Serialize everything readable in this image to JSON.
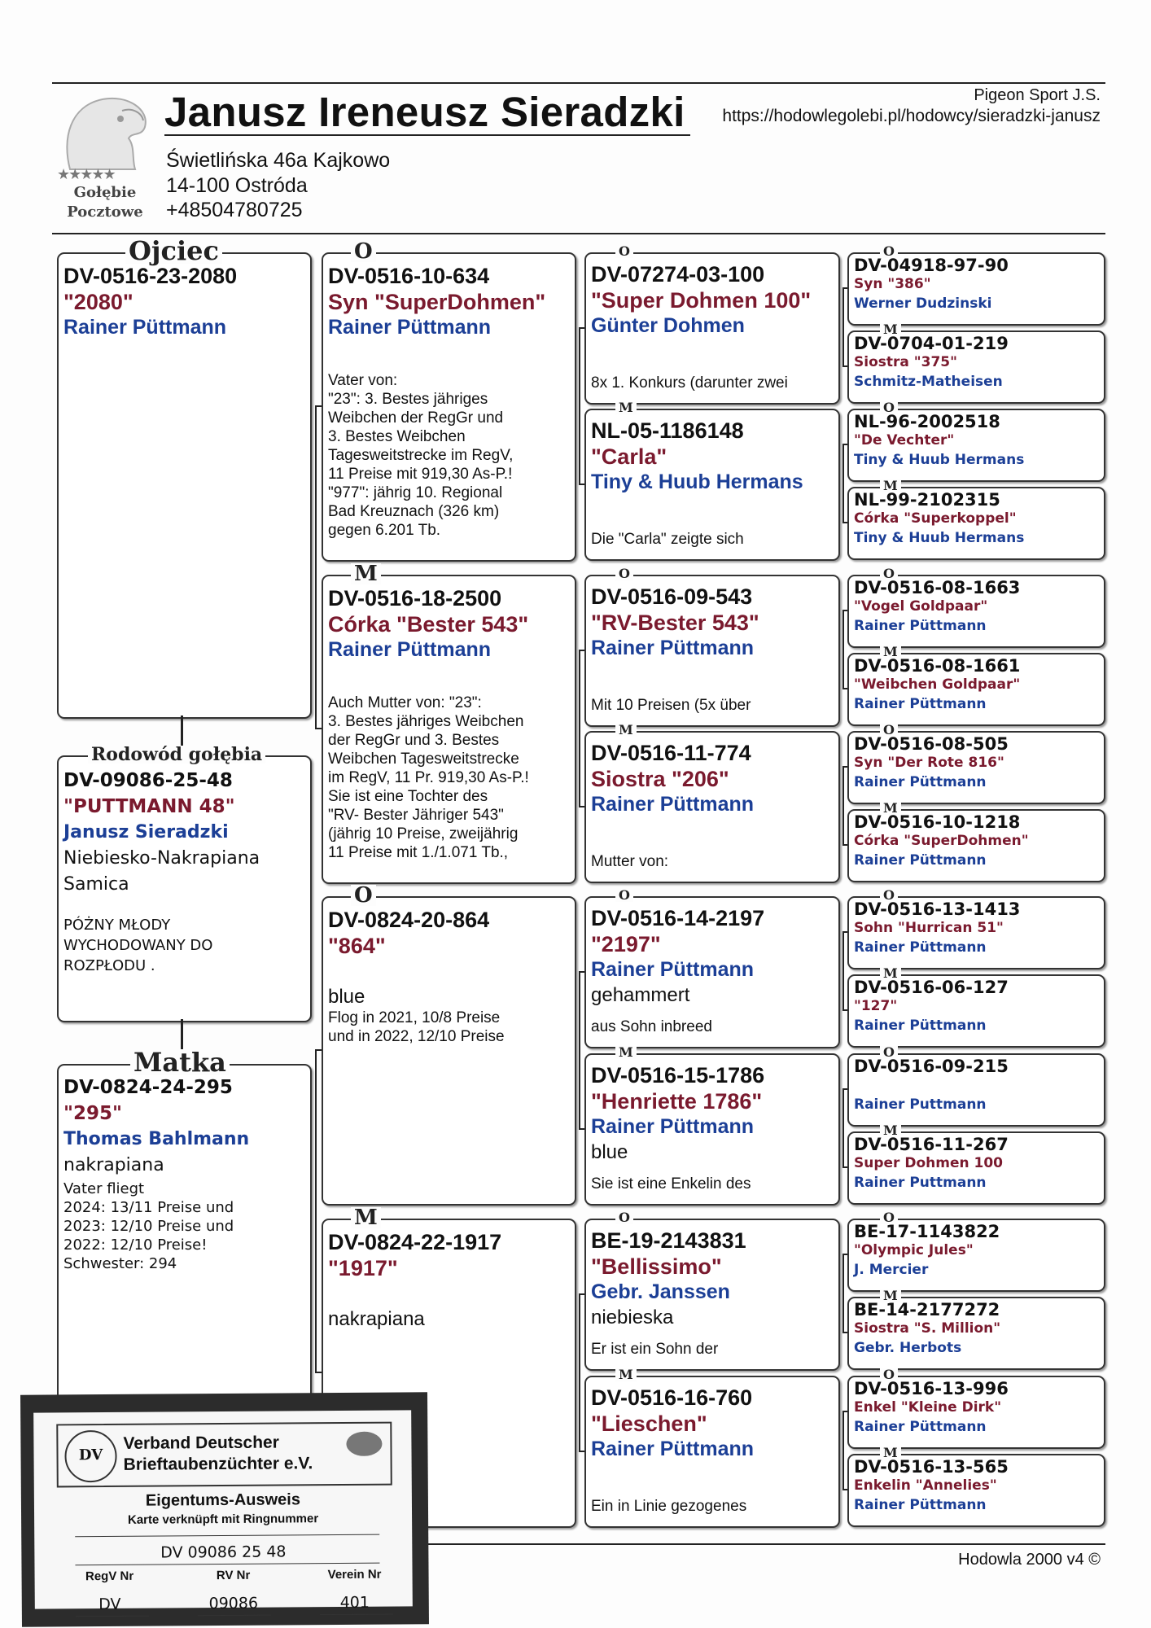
{
  "header": {
    "breeder_name": "Janusz Ireneusz Sieradzki",
    "address_line1": "Świetlińska 46a Kajkowo",
    "address_line2": "14-100 Ostróda",
    "phone": "+48504780725",
    "brand": "Pigeon Sport J.S.",
    "url": "https://hodowlegolebi.pl/hodowcy/sieradzki-janusz",
    "logo": {
      "stars": "★★★★★",
      "line1": "Gołębie",
      "line2": "Pocztowe"
    }
  },
  "colors": {
    "name": "#7a1a2e",
    "breeder": "#1c3f96",
    "text": "#111111"
  },
  "generation1": [
    {
      "label": "Ojciec",
      "ring": "DV-0516-23-2080",
      "name": "\"2080\"",
      "breeder": "Rainer Püttmann",
      "color": "",
      "note": ""
    },
    {
      "label": "Rodowód gołębia",
      "ring": "DV-09086-25-48",
      "name": "\"PUTTMANN 48\"",
      "breeder": "Janusz Sieradzki",
      "color": "Niebiesko-Nakrapiana",
      "sex": "Samica",
      "note": "PÓŻNY MŁODY\nWYCHODOWANY DO\nROZPŁODU ."
    },
    {
      "label": "Matka",
      "ring": "DV-0824-24-295",
      "name": "\"295\"",
      "breeder": "Thomas Bahlmann",
      "color": "nakrapiana",
      "note": "Vater fliegt\n2024: 13/11 Preise und\n2023: 12/10 Preise und\n2022:  12/10 Preise!\nSchwester: 294"
    }
  ],
  "generation2": [
    {
      "label": "O",
      "ring": "DV-0516-10-634",
      "name": "Syn \"SuperDohmen\"",
      "breeder": "Rainer Püttmann",
      "color": "",
      "note": "Vater von:\n\"23\": 3. Bestes jähriges\nWeibchen der RegGr und\n3. Bestes Weibchen\nTagesweitstrecke im RegV,\n11 Preise mit 919,30 As-P.!\n\"977\": jährig 10. Regional\nBad Kreuznach (326 km)\ngegen 6.201 Tb."
    },
    {
      "label": "M",
      "ring": "DV-0516-18-2500",
      "name": "Córka \"Bester 543\"",
      "breeder": "Rainer Püttmann",
      "color": "",
      "note": "Auch Mutter von: \"23\":\n3. Bestes jähriges Weibchen\nder RegGr und 3. Bestes\nWeibchen Tagesweitstrecke\nim RegV, 11 Pr. 919,30 As-P.!\nSie ist eine Tochter des\n\"RV- Bester Jähriger 543\"\n(jährig 10 Preise, zweijährig\n11 Preise mit 1./1.071 Tb.,"
    },
    {
      "label": "O",
      "ring": "DV-0824-20-864",
      "name": "\"864\"",
      "breeder": "",
      "color": "blue",
      "note": "Flog in 2021, 10/8 Preise\nund in 2022, 12/10 Preise"
    },
    {
      "label": "M",
      "ring": "DV-0824-22-1917",
      "name": "\"1917\"",
      "breeder": "",
      "color": "nakrapiana",
      "note": ""
    }
  ],
  "generation3": [
    {
      "label": "O",
      "ring": "DV-07274-03-100",
      "name": "\"Super Dohmen 100\"",
      "breeder": "Günter Dohmen",
      "color": "",
      "note": "8x 1. Konkurs (darunter zwei"
    },
    {
      "label": "M",
      "ring": "NL-05-1186148",
      "name": "\"Carla\"",
      "breeder": "Tiny & Huub Hermans",
      "color": "",
      "note": "Die \"Carla\" zeigte sich"
    },
    {
      "label": "O",
      "ring": "DV-0516-09-543",
      "name": "\"RV-Bester 543\"",
      "breeder": "Rainer Püttmann",
      "color": "",
      "note": "Mit 10 Preisen (5x über"
    },
    {
      "label": "M",
      "ring": "DV-0516-11-774",
      "name": "Siostra \"206\"",
      "breeder": "Rainer Püttmann",
      "color": "",
      "note": "Mutter von:"
    },
    {
      "label": "O",
      "ring": "DV-0516-14-2197",
      "name": "\"2197\"",
      "breeder": "Rainer Püttmann",
      "color": "gehammert",
      "note": "aus Sohn inbreed"
    },
    {
      "label": "M",
      "ring": "DV-0516-15-1786",
      "name": "\"Henriette 1786\"",
      "breeder": "Rainer Püttmann",
      "color": "blue",
      "note": "Sie ist eine Enkelin des"
    },
    {
      "label": "O",
      "ring": "BE-19-2143831",
      "name": "\"Bellissimo\"",
      "breeder": "Gebr. Janssen",
      "color": "niebieska",
      "note": "Er ist ein Sohn der"
    },
    {
      "label": "M",
      "ring": "DV-0516-16-760",
      "name": "\"Lieschen\"",
      "breeder": "Rainer Püttmann",
      "color": "",
      "note": "Ein in Linie gezogenes"
    }
  ],
  "generation4": [
    {
      "label": "O",
      "ring": "DV-04918-97-90",
      "name": "Syn \"386\"",
      "breeder": "Werner Dudzinski"
    },
    {
      "label": "M",
      "ring": "DV-0704-01-219",
      "name": "Siostra \"375\"",
      "breeder": "Schmitz-Matheisen"
    },
    {
      "label": "O",
      "ring": "NL-96-2002518",
      "name": "\"De Vechter\"",
      "breeder": "Tiny & Huub Hermans"
    },
    {
      "label": "M",
      "ring": "NL-99-2102315",
      "name": "Córka \"Superkoppel\"",
      "breeder": "Tiny & Huub Hermans"
    },
    {
      "label": "O",
      "ring": "DV-0516-08-1663",
      "name": "\"Vogel Goldpaar\"",
      "breeder": "Rainer Püttmann"
    },
    {
      "label": "M",
      "ring": "DV-0516-08-1661",
      "name": "\"Weibchen Goldpaar\"",
      "breeder": "Rainer Püttmann"
    },
    {
      "label": "O",
      "ring": "DV-0516-08-505",
      "name": "Syn \"Der Rote 816\"",
      "breeder": "Rainer Püttmann"
    },
    {
      "label": "M",
      "ring": "DV-0516-10-1218",
      "name": "Córka \"SuperDohmen\"",
      "breeder": "Rainer Püttmann"
    },
    {
      "label": "O",
      "ring": "DV-0516-13-1413",
      "name": "Sohn \"Hurrican 51\"",
      "breeder": "Rainer Püttmann"
    },
    {
      "label": "M",
      "ring": "DV-0516-06-127",
      "name": "\"127\"",
      "breeder": "Rainer Püttmann"
    },
    {
      "label": "O",
      "ring": "DV-0516-09-215",
      "name": "",
      "breeder": "Rainer Puttmann"
    },
    {
      "label": "M",
      "ring": "DV-0516-11-267",
      "name": "Super Dohmen 100",
      "breeder": "Rainer Puttmann"
    },
    {
      "label": "O",
      "ring": "BE-17-1143822",
      "name": "\"Olympic Jules\"",
      "breeder": "J. Mercier"
    },
    {
      "label": "M",
      "ring": "BE-14-2177272",
      "name": "Siostra \"S. Million\"",
      "breeder": "Gebr. Herbots"
    },
    {
      "label": "O",
      "ring": "DV-0516-13-996",
      "name": "Enkel \"Kleine Dirk\"",
      "breeder": "Rainer Püttmann"
    },
    {
      "label": "M",
      "ring": "DV-0516-13-565",
      "name": "Enkelin \"Annelies\"",
      "breeder": "Rainer Püttmann"
    }
  ],
  "footer": {
    "software": "Hodowla 2000 v4 ©"
  },
  "ownership_card": {
    "seal": "DV",
    "org_line1": "Verband Deutscher",
    "org_line2": "Brieftaubenzüchter e.V.",
    "title": "Eigentums-Ausweis",
    "subtitle": "Karte verknüpft mit Ringnummer",
    "ring_number": "DV 09086 25 48",
    "columns": [
      {
        "header": "RegV Nr",
        "value": "DV"
      },
      {
        "header": "RV Nr",
        "value": "09086"
      },
      {
        "header": "Verein Nr",
        "value": "401"
      }
    ]
  }
}
